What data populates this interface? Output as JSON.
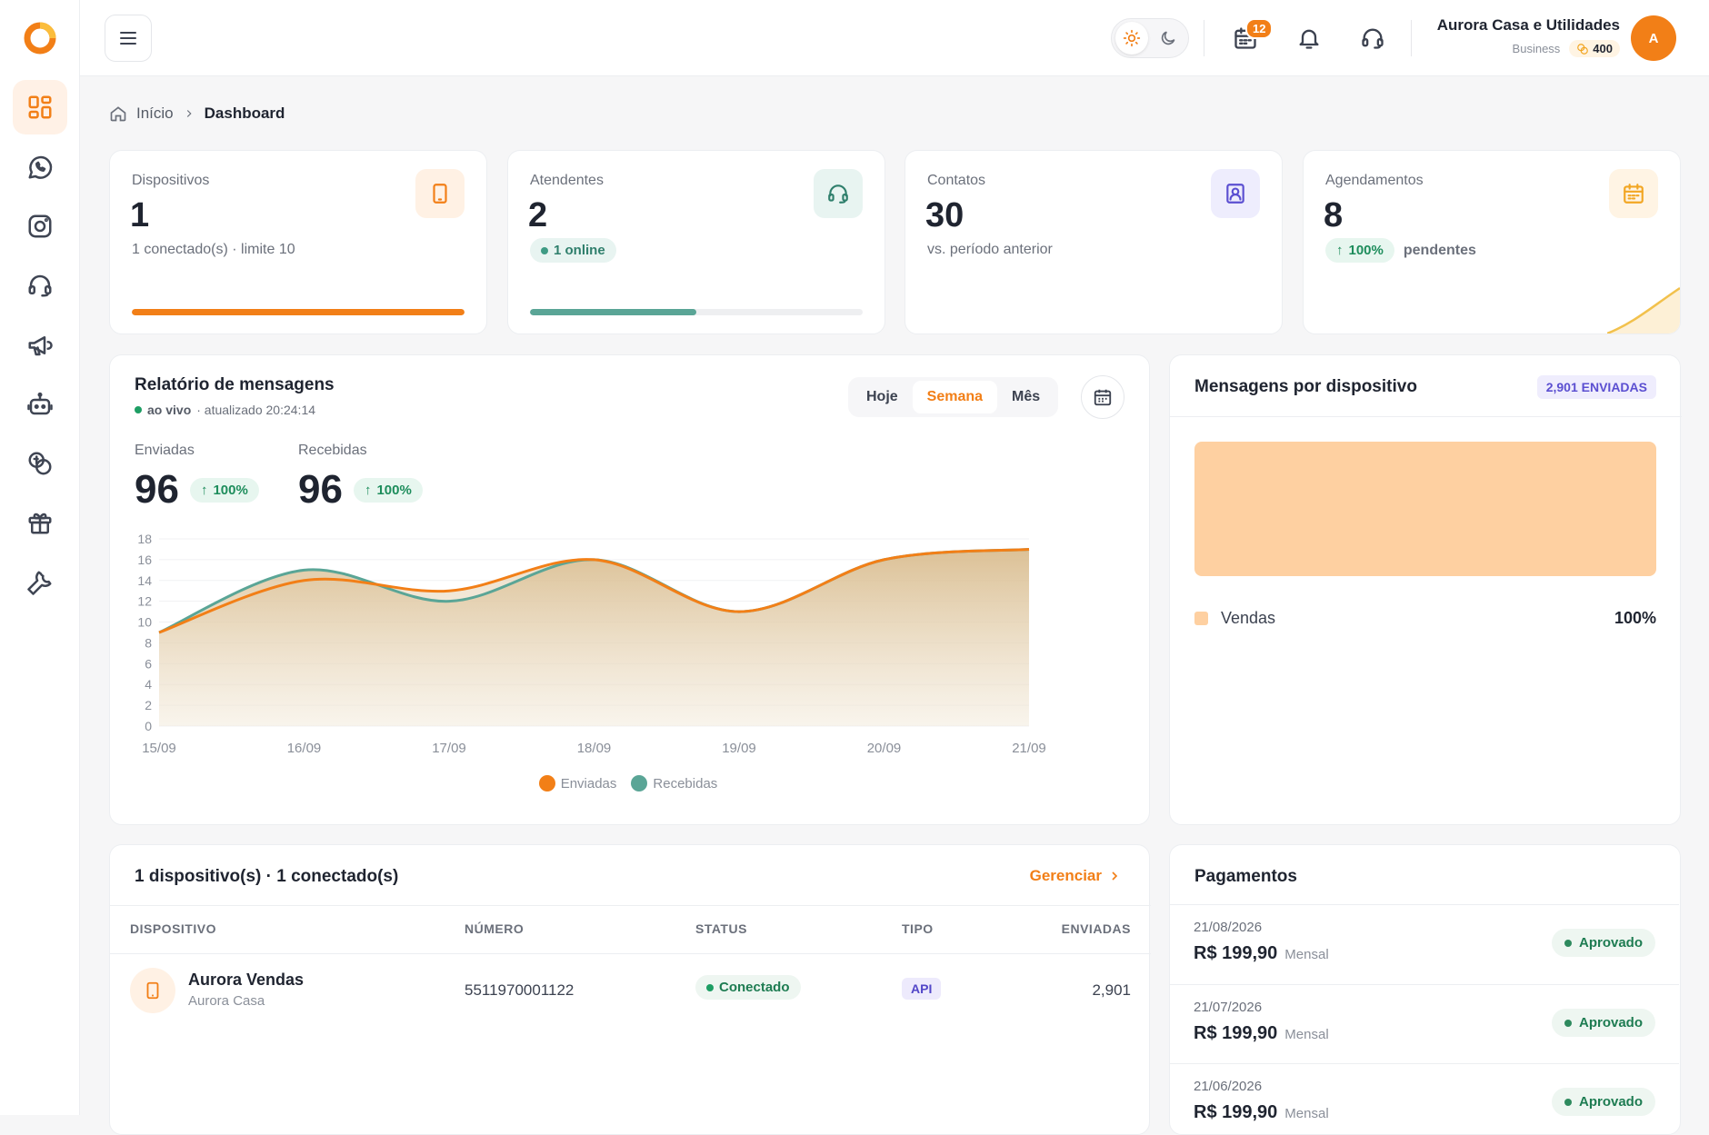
{
  "topbar": {
    "notifications_count": "12",
    "company_name": "Aurora Casa e Utilidades",
    "plan": "Business",
    "coins": "400",
    "avatar_initial": "A"
  },
  "breadcrumb": {
    "home": "Início",
    "current": "Dashboard"
  },
  "stats": [
    {
      "label": "Dispositivos",
      "value": "1",
      "sub": "1 conectado(s) · limite 10",
      "progress": 1.0,
      "color": "#f27f17"
    },
    {
      "label": "Atendentes",
      "value": "2",
      "pill": "1 online",
      "progress": 0.5,
      "color": "#5aa596"
    },
    {
      "label": "Contatos",
      "value": "30",
      "sub": "vs. período anterior"
    },
    {
      "label": "Agendamentos",
      "value": "8",
      "pill": "100%",
      "sub": "pendentes"
    }
  ],
  "report": {
    "title": "Relatório de mensagens",
    "live": "ao vivo",
    "updated": "· atualizado 20:24:14",
    "tabs": [
      "Hoje",
      "Semana",
      "Mês"
    ],
    "active_tab": "Semana",
    "sent_label": "Enviadas",
    "sent_value": "96",
    "sent_change": "100%",
    "recv_label": "Recebidas",
    "recv_value": "96",
    "recv_change": "100%"
  },
  "chart_data": {
    "type": "area",
    "categories": [
      "15/09",
      "16/09",
      "17/09",
      "18/09",
      "19/09",
      "20/09",
      "21/09"
    ],
    "series": [
      {
        "name": "Enviadas",
        "color": "#f27f17",
        "values": [
          9,
          14,
          13,
          16,
          11,
          16,
          17
        ]
      },
      {
        "name": "Recebidas",
        "color": "#5aa596",
        "values": [
          9,
          15,
          12,
          16,
          11,
          16,
          17
        ]
      }
    ],
    "ylim": [
      0,
      18
    ],
    "yticks": [
      0,
      2,
      4,
      6,
      8,
      10,
      12,
      14,
      16,
      18
    ]
  },
  "by_device": {
    "title": "Mensagens por dispositivo",
    "chip": "2,901 ENVIADAS",
    "bar_color": "#fed0a1",
    "legend_label": "Vendas",
    "legend_value": "100%"
  },
  "devices": {
    "title": "1 dispositivo(s) · 1 conectado(s)",
    "manage": "Gerenciar",
    "columns": [
      "DISPOSITIVO",
      "NÚMERO",
      "STATUS",
      "TIPO",
      "ENVIADAS"
    ],
    "rows": [
      {
        "name": "Aurora Vendas",
        "sub": "Aurora Casa",
        "number": "5511970001122",
        "status": "Conectado",
        "type": "API",
        "sent": "2,901"
      }
    ]
  },
  "payments": {
    "title": "Pagamentos",
    "items": [
      {
        "date": "21/08/2026",
        "amount": "R$ 199,90",
        "plan": "Mensal",
        "status": "Aprovado"
      },
      {
        "date": "21/07/2026",
        "amount": "R$ 199,90",
        "plan": "Mensal",
        "status": "Aprovado"
      },
      {
        "date": "21/06/2026",
        "amount": "R$ 199,90",
        "plan": "Mensal",
        "status": "Aprovado"
      }
    ]
  }
}
